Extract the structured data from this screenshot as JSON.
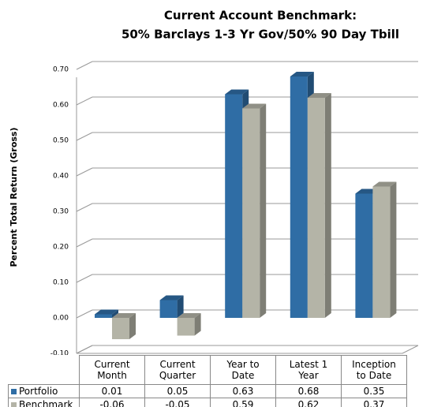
{
  "chart_data": {
    "type": "bar3d",
    "title": "Current Account Benchmark:",
    "subtitle": "50% Barclays 1-3 Yr Gov/50% 90 Day Tbill",
    "y_label": "Percent Total Return (Gross)",
    "categories": [
      "Current Month",
      "Current Quarter",
      "Year to Date",
      "Latest 1 Year",
      "Inception to Date"
    ],
    "series": [
      {
        "name": "Portfolio",
        "color": "#2f6da5",
        "values": [
          0.01,
          0.05,
          0.63,
          0.68,
          0.35
        ]
      },
      {
        "name": "Benchmark",
        "color": "#b4b4a7",
        "values": [
          -0.06,
          -0.05,
          0.59,
          0.62,
          0.37
        ]
      }
    ],
    "ylim": [
      -0.1,
      0.7
    ],
    "yticks": [
      {
        "value": -0.1,
        "label": "-0.10"
      },
      {
        "value": 0,
        "label": "0.00"
      },
      {
        "value": 0.1,
        "label": "0.10"
      },
      {
        "value": 0.2,
        "label": "0.20"
      },
      {
        "value": 0.3,
        "label": "0.30"
      },
      {
        "value": 0.4,
        "label": "0.40"
      },
      {
        "value": 0.5,
        "label": "0.50"
      },
      {
        "value": 0.6,
        "label": "0.60"
      },
      {
        "value": 0.7,
        "label": "0.70"
      }
    ],
    "grid": true
  }
}
